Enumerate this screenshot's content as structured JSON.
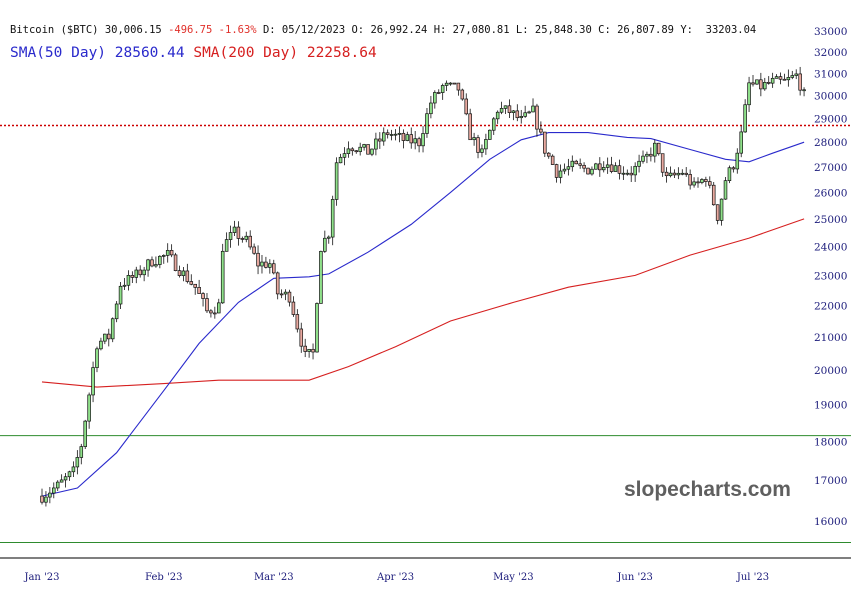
{
  "header": {
    "symbol": "Bitcoin ($BTC)",
    "last": "30,006.15",
    "change": "-496.75",
    "change_pct": "-1.63%",
    "date_label": "D:",
    "date": "05/12/2023",
    "open_label": "O:",
    "open": "26,992.24",
    "high_label": "H:",
    "high": "27,080.81",
    "low_label": "L:",
    "low": "25,848.30",
    "close_label": "C:",
    "close": "26,807.89",
    "y_label": "Y:",
    "y_value": "33203.04"
  },
  "indicators": {
    "sma50_label": "SMA(50 Day)",
    "sma50_value": "28560.44",
    "sma200_label": "SMA(200 Day)",
    "sma200_value": "22258.64"
  },
  "watermark": "slopecharts.com",
  "colors": {
    "up_candle": "#8fe08a",
    "down_candle": "#e8a9a0",
    "sma50": "#2a2acc",
    "sma200": "#d62020",
    "level_dotted": "#cc0000",
    "level_green": "#2e8b2e",
    "axis_text": "#1a1a7a",
    "negative_text": "#e0302a"
  },
  "chart_data": {
    "type": "candlestick",
    "title": "Bitcoin ($BTC)",
    "y_axis": {
      "position": "right",
      "ticks": [
        16000,
        17000,
        18000,
        19000,
        20000,
        21000,
        22000,
        23000,
        24000,
        25000,
        26000,
        27000,
        28000,
        29000,
        30000,
        31000,
        32000,
        33000
      ],
      "tick_labels": [
        "16000",
        "17000",
        "18000",
        "19000",
        "20000",
        "21000",
        "22000",
        "23000",
        "24000",
        "25000",
        "26000",
        "27000",
        "28000",
        "29000",
        "30000",
        "31000",
        "32000",
        "33000"
      ],
      "scale": "log"
    },
    "x_axis": {
      "tick_labels": [
        "Jan '23",
        "Feb '23",
        "Mar '23",
        "Apr '23",
        "May '23",
        "Jun '23",
        "Jul '23"
      ],
      "tick_dates": [
        "2023-01-01",
        "2023-02-01",
        "2023-03-01",
        "2023-04-01",
        "2023-05-01",
        "2023-06-01",
        "2023-07-01"
      ],
      "range": [
        "2022-12-22",
        "2023-07-14"
      ]
    },
    "horizontal_levels": [
      {
        "value": 28700,
        "style": "dotted",
        "color": "#cc0000"
      },
      {
        "value": 18150,
        "style": "solid",
        "color": "#2e8b2e"
      },
      {
        "value": 15500,
        "style": "solid",
        "color": "#2e8b2e"
      }
    ],
    "close_path": [
      [
        "2023-01-01",
        16600
      ],
      [
        "2023-01-05",
        16850
      ],
      [
        "2023-01-09",
        17200
      ],
      [
        "2023-01-11",
        17900
      ],
      [
        "2023-01-13",
        19300
      ],
      [
        "2023-01-15",
        20800
      ],
      [
        "2023-01-18",
        21000
      ],
      [
        "2023-01-21",
        22700
      ],
      [
        "2023-01-25",
        23000
      ],
      [
        "2023-01-29",
        23500
      ],
      [
        "2023-02-02",
        23700
      ],
      [
        "2023-02-05",
        23200
      ],
      [
        "2023-02-09",
        22600
      ],
      [
        "2023-02-12",
        21800
      ],
      [
        "2023-02-15",
        22000
      ],
      [
        "2023-02-16",
        24000
      ],
      [
        "2023-02-19",
        24500
      ],
      [
        "2023-02-22",
        24200
      ],
      [
        "2023-02-25",
        23400
      ],
      [
        "2023-02-28",
        23400
      ],
      [
        "2023-03-02",
        22400
      ],
      [
        "2023-03-05",
        22300
      ],
      [
        "2023-03-09",
        20400
      ],
      [
        "2023-03-11",
        20500
      ],
      [
        "2023-03-13",
        24000
      ],
      [
        "2023-03-15",
        24500
      ],
      [
        "2023-03-17",
        27200
      ],
      [
        "2023-03-20",
        27900
      ],
      [
        "2023-03-25",
        27600
      ],
      [
        "2023-03-30",
        28400
      ],
      [
        "2023-04-03",
        28100
      ],
      [
        "2023-04-07",
        28000
      ],
      [
        "2023-04-10",
        29700
      ],
      [
        "2023-04-13",
        30400
      ],
      [
        "2023-04-17",
        30300
      ],
      [
        "2023-04-20",
        28300
      ],
      [
        "2023-04-23",
        27500
      ],
      [
        "2023-04-27",
        29400
      ],
      [
        "2023-04-30",
        29300
      ],
      [
        "2023-05-03",
        28900
      ],
      [
        "2023-05-06",
        29300
      ],
      [
        "2023-05-09",
        27700
      ],
      [
        "2023-05-12",
        26800
      ],
      [
        "2023-05-16",
        27000
      ],
      [
        "2023-05-20",
        26900
      ],
      [
        "2023-05-24",
        27200
      ],
      [
        "2023-05-28",
        26900
      ],
      [
        "2023-05-31",
        26800
      ],
      [
        "2023-06-03",
        27200
      ],
      [
        "2023-06-06",
        27800
      ],
      [
        "2023-06-09",
        26500
      ],
      [
        "2023-06-13",
        26800
      ],
      [
        "2023-06-16",
        26200
      ],
      [
        "2023-06-19",
        26600
      ],
      [
        "2023-06-22",
        25100
      ],
      [
        "2023-06-24",
        26500
      ],
      [
        "2023-06-26",
        27100
      ],
      [
        "2023-06-28",
        28300
      ],
      [
        "2023-06-30",
        30500
      ],
      [
        "2023-07-03",
        30400
      ],
      [
        "2023-07-06",
        30600
      ],
      [
        "2023-07-09",
        30600
      ],
      [
        "2023-07-12",
        30900
      ],
      [
        "2023-07-13",
        30500
      ],
      [
        "2023-07-14",
        30000
      ]
    ],
    "sma50": [
      [
        "2023-01-01",
        16600
      ],
      [
        "2023-01-10",
        16800
      ],
      [
        "2023-01-20",
        17700
      ],
      [
        "2023-02-01",
        19400
      ],
      [
        "2023-02-10",
        20800
      ],
      [
        "2023-02-20",
        22100
      ],
      [
        "2023-03-01",
        22900
      ],
      [
        "2023-03-10",
        22950
      ],
      [
        "2023-03-15",
        23050
      ],
      [
        "2023-03-25",
        23800
      ],
      [
        "2023-04-05",
        24800
      ],
      [
        "2023-04-15",
        26000
      ],
      [
        "2023-04-25",
        27300
      ],
      [
        "2023-05-03",
        28100
      ],
      [
        "2023-05-10",
        28400
      ],
      [
        "2023-05-20",
        28400
      ],
      [
        "2023-05-30",
        28200
      ],
      [
        "2023-06-05",
        28150
      ],
      [
        "2023-06-15",
        27700
      ],
      [
        "2023-06-24",
        27300
      ],
      [
        "2023-06-30",
        27200
      ],
      [
        "2023-07-06",
        27550
      ],
      [
        "2023-07-14",
        28000
      ]
    ],
    "sma200": [
      [
        "2023-01-01",
        19650
      ],
      [
        "2023-01-15",
        19500
      ],
      [
        "2023-02-01",
        19600
      ],
      [
        "2023-02-15",
        19700
      ],
      [
        "2023-03-01",
        19700
      ],
      [
        "2023-03-10",
        19700
      ],
      [
        "2023-03-20",
        20100
      ],
      [
        "2023-04-01",
        20700
      ],
      [
        "2023-04-15",
        21500
      ],
      [
        "2023-05-01",
        22100
      ],
      [
        "2023-05-15",
        22600
      ],
      [
        "2023-06-01",
        23000
      ],
      [
        "2023-06-15",
        23700
      ],
      [
        "2023-06-30",
        24300
      ],
      [
        "2023-07-14",
        25000
      ]
    ]
  }
}
